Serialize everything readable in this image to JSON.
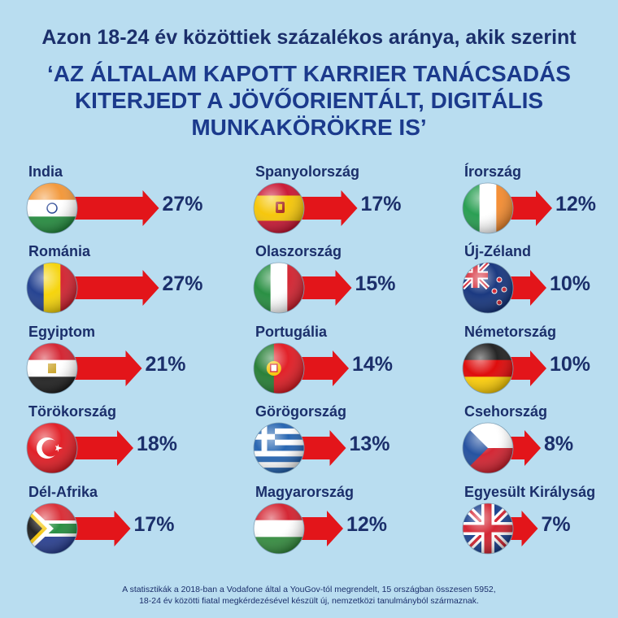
{
  "title": "Azon 18-24 év közöttiek százalékos aránya, akik szerint",
  "subtitle": "‘AZ ÁLTALAM KAPOTT KARRIER TANÁCSADÁS\nKITERJEDT A JÖVŐORIENTÁLT, DIGITÁLIS\nMUNKAKÖRÖKRE IS’",
  "footnote": "A statisztikák a 2018-ban a Vodafone által a YouGov-tól megrendelt, 15 országban összesen 5952,\n18-24 év közötti fiatal megkérdezésével készült új, nemzetközi tanulmányból származnak.",
  "colors": {
    "background": "#b9ddf0",
    "arrow": "#e3151a",
    "text": "#1b2f6b"
  },
  "chart_data": {
    "type": "bar",
    "unit": "%",
    "categories": [
      "India",
      "Románia",
      "Egyiptom",
      "Törökország",
      "Dél-Afrika",
      "Spanyolország",
      "Olaszország",
      "Portugália",
      "Görögország",
      "Magyarország",
      "Írország",
      "Új-Zéland",
      "Németország",
      "Csehország",
      "Egyesült Királyság"
    ],
    "values": [
      27,
      27,
      21,
      18,
      17,
      17,
      15,
      14,
      13,
      12,
      12,
      10,
      10,
      8,
      7
    ],
    "labels": [
      "27%",
      "27%",
      "21%",
      "18%",
      "17%",
      "17%",
      "15%",
      "14%",
      "13%",
      "12%",
      "12%",
      "10%",
      "10%",
      "8%",
      "7%"
    ],
    "flags": [
      "india-flag",
      "romania-flag",
      "egypt-flag",
      "turkey-flag",
      "south-africa-flag",
      "spain-flag",
      "italy-flag",
      "portugal-flag",
      "greece-flag",
      "hungary-flag",
      "ireland-flag",
      "new-zealand-flag",
      "germany-flag",
      "czech-flag",
      "uk-flag"
    ]
  }
}
